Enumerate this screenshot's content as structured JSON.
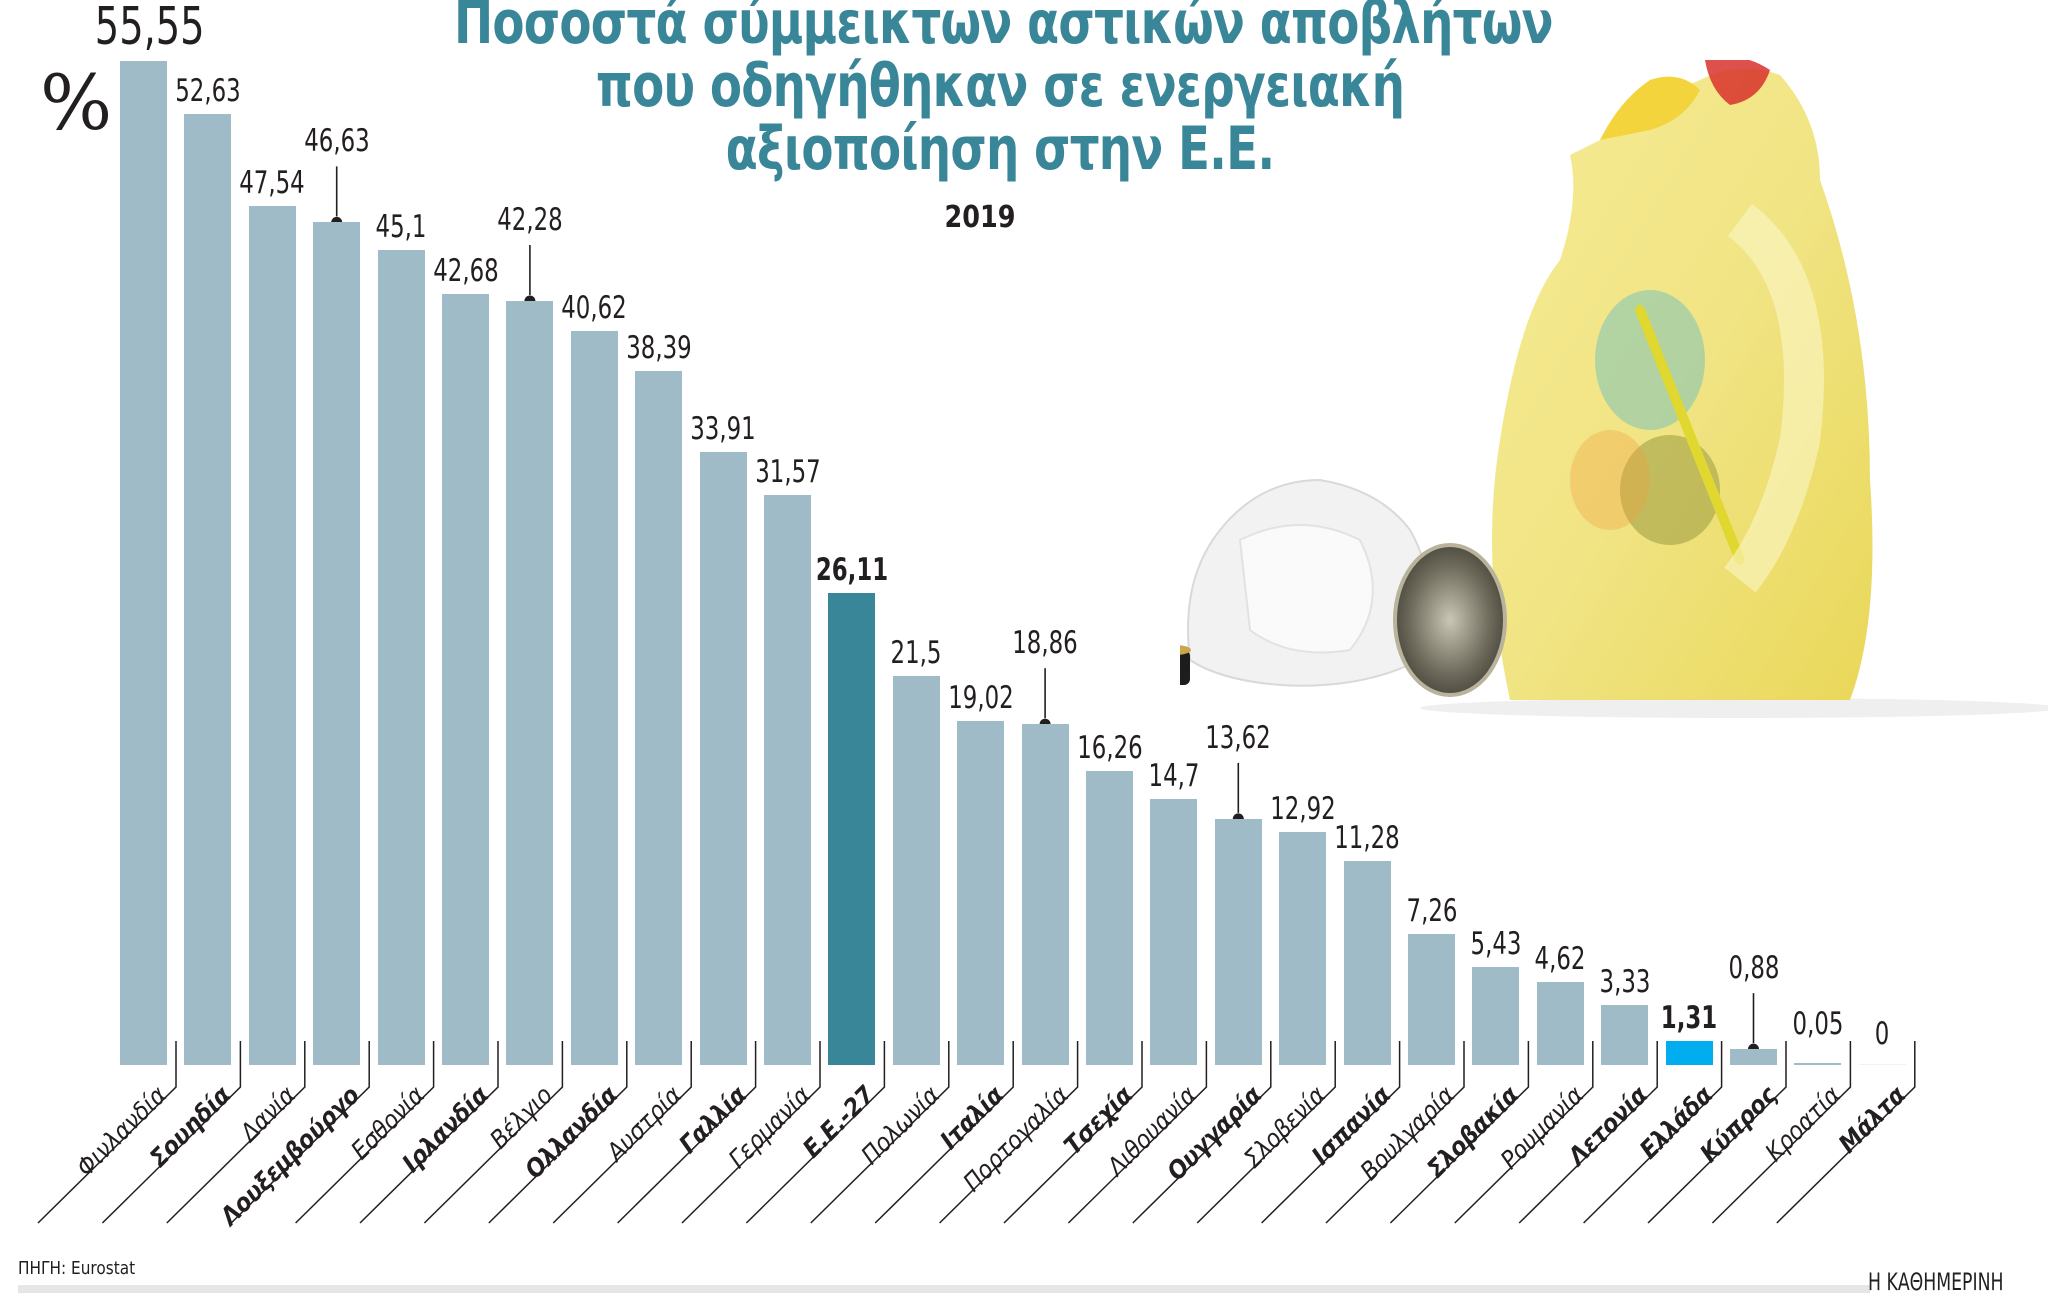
{
  "header": {
    "title_lines": [
      "Ποσοστά σύμμεικτων αστικών αποβλήτων",
      "που οδηγήθηκαν σε ενεργειακή",
      "αξιοποίηση στην Ε.Ε."
    ],
    "subtitle": "2019",
    "unit": "%"
  },
  "footer": {
    "source": "ΠΗΓΗ: Eurostat",
    "brand": "Η ΚΑΘΗΜΕΡΙΝΗ"
  },
  "colors": {
    "title": "#3a8699",
    "bar_default": "#a0bbc8",
    "bar_eu": "#3a8699",
    "bar_greece": "#00aeef",
    "text": "#231f20",
    "footer_bar": "#e6e6e6"
  },
  "chart_data": {
    "type": "bar",
    "title": "Ποσοστά σύμμεικτων αστικών αποβλήτων που οδηγήθηκαν σε ενεργειακή αξιοποίηση στην Ε.Ε.",
    "subtitle": "2019",
    "xlabel": "",
    "ylabel": "%",
    "ylim": [
      0,
      56
    ],
    "grid": false,
    "legend": "none",
    "categories": [
      "Φινλανδία",
      "Σουηδία",
      "Δανία",
      "Λουξεμβούργο",
      "Εσθονία",
      "Ιρλανδία",
      "Βέλγιο",
      "Ολλανδία",
      "Αυστρία",
      "Γαλλία",
      "Γερμανία",
      "Ε.Ε.-27",
      "Πολωνία",
      "Ιταλία",
      "Πορτογαλία",
      "Τσεχία",
      "Λιθουανία",
      "Ουγγαρία",
      "Σλοβενία",
      "Ισπανία",
      "Βουλγαρία",
      "Σλοβακία",
      "Ρουμανία",
      "Λετονία",
      "Ελλάδα",
      "Κύπρος",
      "Κροατία",
      "Μάλτα"
    ],
    "values": [
      55.55,
      52.63,
      47.54,
      46.63,
      45.1,
      42.68,
      42.28,
      40.62,
      38.39,
      33.91,
      31.57,
      26.11,
      21.5,
      19.02,
      18.86,
      16.26,
      14.7,
      13.62,
      12.92,
      11.28,
      7.26,
      5.43,
      4.62,
      3.33,
      1.31,
      0.88,
      0.05,
      0
    ],
    "value_labels": [
      "55,55",
      "52,63",
      "47,54",
      "46,63",
      "45,1",
      "42,68",
      "42,28",
      "40,62",
      "38,39",
      "33,91",
      "31,57",
      "26,11",
      "21,5",
      "19,02",
      "18,86",
      "16,26",
      "14,7",
      "13,62",
      "12,92",
      "11,28",
      "7,26",
      "5,43",
      "4,62",
      "3,33",
      "1,31",
      "0,88",
      "0,05",
      "0"
    ],
    "bold_categories": [
      "Σουηδία",
      "Λουξεμβούργο",
      "Ιρλανδία",
      "Ολλανδία",
      "Γαλλία",
      "Ε.Ε.-27",
      "Ιταλία",
      "Τσεχία",
      "Ουγγαρία",
      "Ισπανία",
      "Σλοβακία",
      "Λετονία",
      "Ελλάδα",
      "Κύπρος",
      "Μάλτα"
    ],
    "highlight": {
      "Ε.Ε.-27": "#3a8699",
      "Ελλάδα": "#00aeef"
    },
    "callout_indices": [
      3,
      6,
      14,
      17,
      25
    ],
    "source": "Eurostat"
  }
}
